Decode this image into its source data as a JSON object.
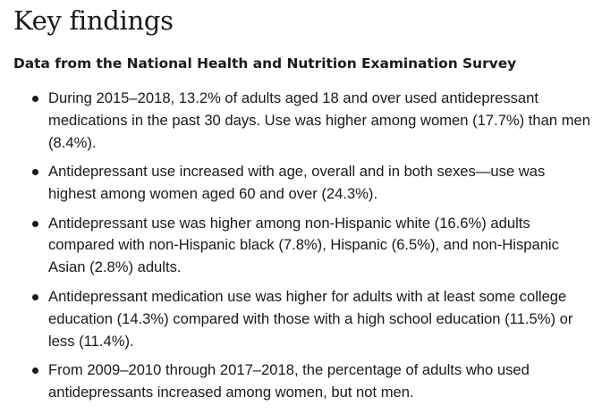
{
  "heading": "Key findings",
  "subheading": "Data from the National Health and Nutrition Examination Survey",
  "findings": [
    "During 2015–2018, 13.2% of adults aged 18 and over used antidepressant medications in the past 30 days. Use was higher among women (17.7%) than men (8.4%).",
    "Antidepressant use increased with age, overall and in both sexes—use was highest among women aged 60 and over (24.3%).",
    "Antidepressant use was higher among non-Hispanic white (16.6%) adults compared with non-Hispanic black (7.8%), Hispanic (6.5%), and non-Hispanic Asian (2.8%) adults.",
    "Antidepressant medication use was higher for adults with at least some college education (14.3%) compared with those with a high school education (11.5%) or less (11.4%).",
    "From 2009–2010 through 2017–2018, the percentage of adults who used antidepressants increased among women, but not men."
  ]
}
